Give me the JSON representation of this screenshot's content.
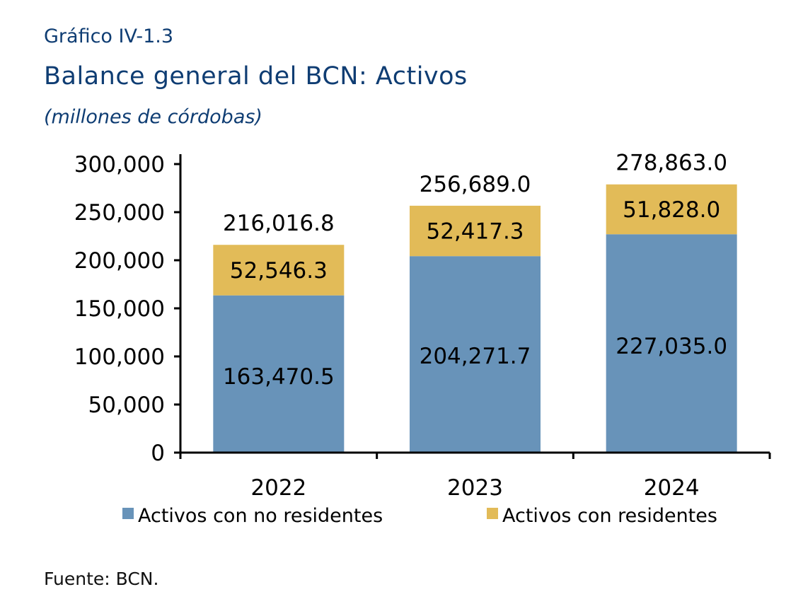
{
  "header": {
    "label": "Gráfico IV-1.3",
    "title": "Balance general del BCN: Activos",
    "subtitle": "(millones de córdobas)"
  },
  "footer": {
    "source": "Fuente: BCN."
  },
  "chart_data": {
    "type": "bar",
    "stacked": true,
    "categories": [
      "2022",
      "2023",
      "2024"
    ],
    "series": [
      {
        "name": "Activos con no residentes",
        "values": [
          163470.5,
          204271.7,
          227035.0
        ],
        "value_labels": [
          "163,470.5",
          "204,271.7",
          "227,035.0"
        ],
        "color": "#6893b9"
      },
      {
        "name": "Activos con residentes",
        "values": [
          52546.3,
          52417.3,
          51828.0
        ],
        "value_labels": [
          "52,546.3",
          "52,417.3",
          "51,828.0"
        ],
        "color": "#e2bb58"
      }
    ],
    "totals": [
      216016.8,
      256689.0,
      278863.0
    ],
    "total_labels": [
      "216,016.8",
      "256,689.0",
      "278,863.0"
    ],
    "ylim": [
      0,
      300000
    ],
    "yticks": [
      0,
      50000,
      100000,
      150000,
      200000,
      250000,
      300000
    ],
    "ytick_labels": [
      "0",
      "50,000",
      "100,000",
      "150,000",
      "200,000",
      "250,000",
      "300,000"
    ],
    "legend_position": "bottom",
    "grid": false
  }
}
